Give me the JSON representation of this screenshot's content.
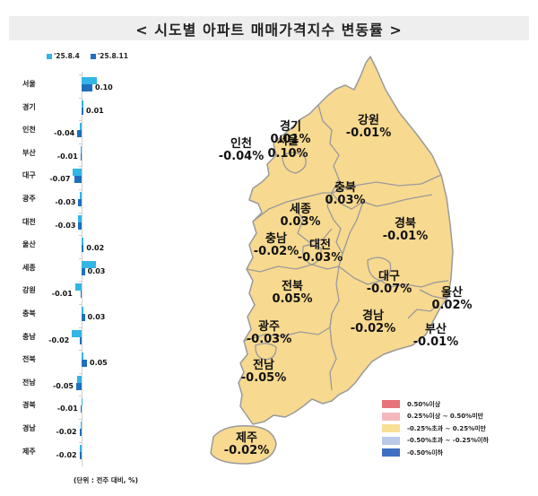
{
  "title": "< 시도별 아파트 매매가격지수 변동률 >",
  "unit_note": "(단위 : 전주 대비, %)",
  "colors": {
    "series_prev": "#33b5e5",
    "series_curr": "#1f6fbf",
    "map_fill": "#f7d990",
    "map_border": "#9a9a9a",
    "title_bg": "#eeeeee"
  },
  "chart_data": {
    "type": "bar",
    "orientation": "horizontal",
    "title": "시도별 아파트 매매가격지수 변동률",
    "xlabel": "",
    "ylabel": "",
    "unit": "전주 대비, %",
    "legend_position": "top-left",
    "grid": false,
    "categories": [
      "서울",
      "경기",
      "인천",
      "부산",
      "대구",
      "광주",
      "대전",
      "울산",
      "세종",
      "강원",
      "충북",
      "충남",
      "전북",
      "전남",
      "경북",
      "경남",
      "제주"
    ],
    "series": [
      {
        "name": "'25.8.4",
        "values": [
          0.14,
          0.02,
          -0.02,
          -0.01,
          -0.08,
          -0.02,
          -0.03,
          0.01,
          0.13,
          -0.06,
          0.01,
          -0.09,
          0.01,
          -0.04,
          0.0,
          -0.01,
          -0.02
        ]
      },
      {
        "name": "'25.8.11",
        "values": [
          0.1,
          0.01,
          -0.04,
          -0.01,
          -0.07,
          -0.03,
          -0.03,
          0.02,
          0.03,
          -0.01,
          0.03,
          -0.02,
          0.05,
          -0.05,
          -0.01,
          -0.02,
          -0.02
        ]
      }
    ],
    "data_labels": [
      "0.10",
      "0.01",
      "-0.04",
      "-0.01",
      "-0.07",
      "-0.03",
      "-0.03",
      "0.02",
      "0.03",
      "-0.01",
      "0.03",
      "-0.02",
      "0.05",
      "-0.05",
      "-0.01",
      "-0.02",
      "-0.02"
    ]
  },
  "legend": [
    {
      "label": "'25.8.4",
      "color": "#33b5e5"
    },
    {
      "label": "'25.8.11",
      "color": "#1f6fbf"
    }
  ],
  "map": {
    "regions": [
      {
        "name": "경기",
        "value": "0.01%"
      },
      {
        "name": "강원",
        "value": "-0.01%"
      },
      {
        "name": "인천",
        "value": "-0.04%"
      },
      {
        "name": "서울",
        "value": "0.10%"
      },
      {
        "name": "충북",
        "value": "0.03%"
      },
      {
        "name": "세종",
        "value": "0.03%"
      },
      {
        "name": "충남",
        "value": "-0.02%"
      },
      {
        "name": "대전",
        "value": "-0.03%"
      },
      {
        "name": "경북",
        "value": "-0.01%"
      },
      {
        "name": "대구",
        "value": "-0.07%"
      },
      {
        "name": "전북",
        "value": "0.05%"
      },
      {
        "name": "울산",
        "value": "0.02%"
      },
      {
        "name": "광주",
        "value": "-0.03%"
      },
      {
        "name": "경남",
        "value": "-0.02%"
      },
      {
        "name": "부산",
        "value": "-0.01%"
      },
      {
        "name": "전남",
        "value": "-0.05%"
      },
      {
        "name": "제주",
        "value": "-0.02%"
      }
    ],
    "legend": [
      {
        "label": "0.50%이상",
        "color": "#e8737a"
      },
      {
        "label": "0.25%이상 ~ 0.50%미만",
        "color": "#f4b8bd"
      },
      {
        "label": "-0.25%초과 ~ 0.25%미만",
        "color": "#f7df95"
      },
      {
        "label": "-0.50%초과 ~ -0.25%이하",
        "color": "#b9c9ea"
      },
      {
        "label": "-0.50%이하",
        "color": "#3f6fc2"
      }
    ]
  }
}
